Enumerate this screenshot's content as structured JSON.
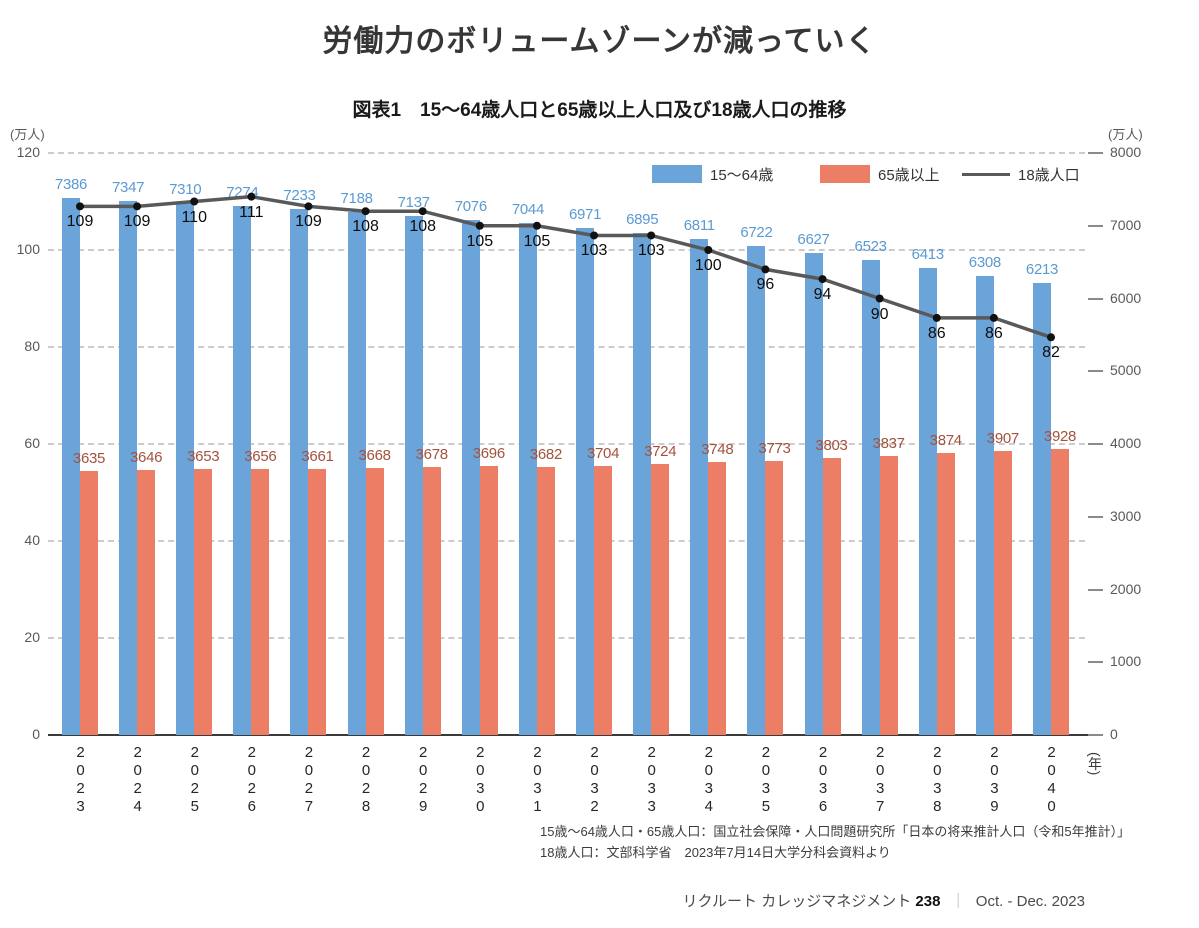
{
  "title": "労働力のボリュームゾーンが減っていく",
  "figure_caption": "図表1　15〜64歳人口と65歳以上人口及び18歳人口の推移",
  "axes": {
    "left": {
      "unit": "(万人)",
      "ticks": [
        0,
        20,
        40,
        60,
        80,
        100,
        120
      ]
    },
    "right": {
      "unit": "(万人)",
      "ticks": [
        0,
        1000,
        2000,
        3000,
        4000,
        5000,
        6000,
        7000,
        8000
      ]
    },
    "x": {
      "unit": "(年)"
    }
  },
  "chart_data": {
    "type": "combo",
    "categories": [
      "2023",
      "2024",
      "2025",
      "2026",
      "2027",
      "2028",
      "2029",
      "2030",
      "2031",
      "2032",
      "2033",
      "2034",
      "2035",
      "2036",
      "2037",
      "2038",
      "2039",
      "2040"
    ],
    "series": [
      {
        "name": "15〜64歳",
        "type": "bar",
        "axis": "right",
        "color": "#6ba4d9",
        "label_color": "#5b9ad2",
        "values": [
          7386,
          7347,
          7310,
          7274,
          7233,
          7188,
          7137,
          7076,
          7044,
          6971,
          6895,
          6811,
          6722,
          6627,
          6523,
          6413,
          6308,
          6213
        ]
      },
      {
        "name": "65歳以上",
        "type": "bar",
        "axis": "right",
        "color": "#ec7e66",
        "label_color": "#a3523e",
        "values": [
          3635,
          3646,
          3653,
          3656,
          3661,
          3668,
          3678,
          3696,
          3682,
          3704,
          3724,
          3748,
          3773,
          3803,
          3837,
          3874,
          3907,
          3928
        ]
      },
      {
        "name": "18歳人口",
        "type": "line",
        "axis": "left",
        "color": "#595959",
        "label_color": "#0d0d0d",
        "values": [
          109,
          109,
          110,
          111,
          109,
          108,
          108,
          105,
          105,
          103,
          103,
          100,
          96,
          94,
          90,
          86,
          86,
          82
        ]
      }
    ],
    "left_ylim": [
      0,
      120
    ],
    "right_ylim": [
      0,
      8000
    ],
    "grid": "horizontal dashed",
    "legend_position": "top-right"
  },
  "source_notes": [
    "15歳〜64歳人口・65歳人口：国立社会保障・人口問題研究所「日本の将来推計人口（令和5年推計）」",
    "18歳人口：文部科学省　2023年7月14日大学分科会資料より"
  ],
  "footer": {
    "journal": "リクルート カレッジマネジメント",
    "issue": "238",
    "separator": "｜",
    "period": "Oct. - Dec. 2023"
  }
}
